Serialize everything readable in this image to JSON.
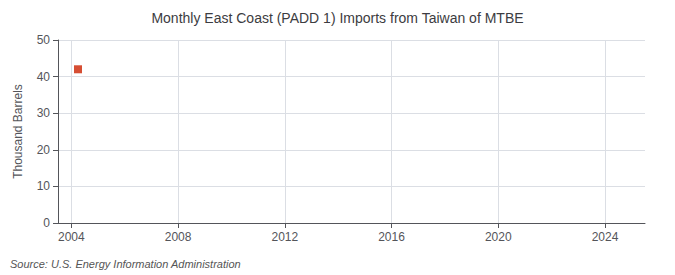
{
  "chart_data": {
    "type": "scatter",
    "title": "Monthly East Coast (PADD 1) Imports from Taiwan of MTBE",
    "ylabel": "Thousand Barrels",
    "annotation": "Source: U.S. Energy Information Administration",
    "x": [
      2004.25
    ],
    "values": [
      42
    ],
    "color": "#cc2200",
    "marker": "square",
    "xlim": [
      2003.5,
      2025.5
    ],
    "xticks": [
      2004,
      2008,
      2012,
      2016,
      2020,
      2024
    ],
    "ylim": [
      0,
      50
    ],
    "yticks": [
      0,
      10,
      20,
      30,
      40,
      50
    ],
    "grid": true
  }
}
